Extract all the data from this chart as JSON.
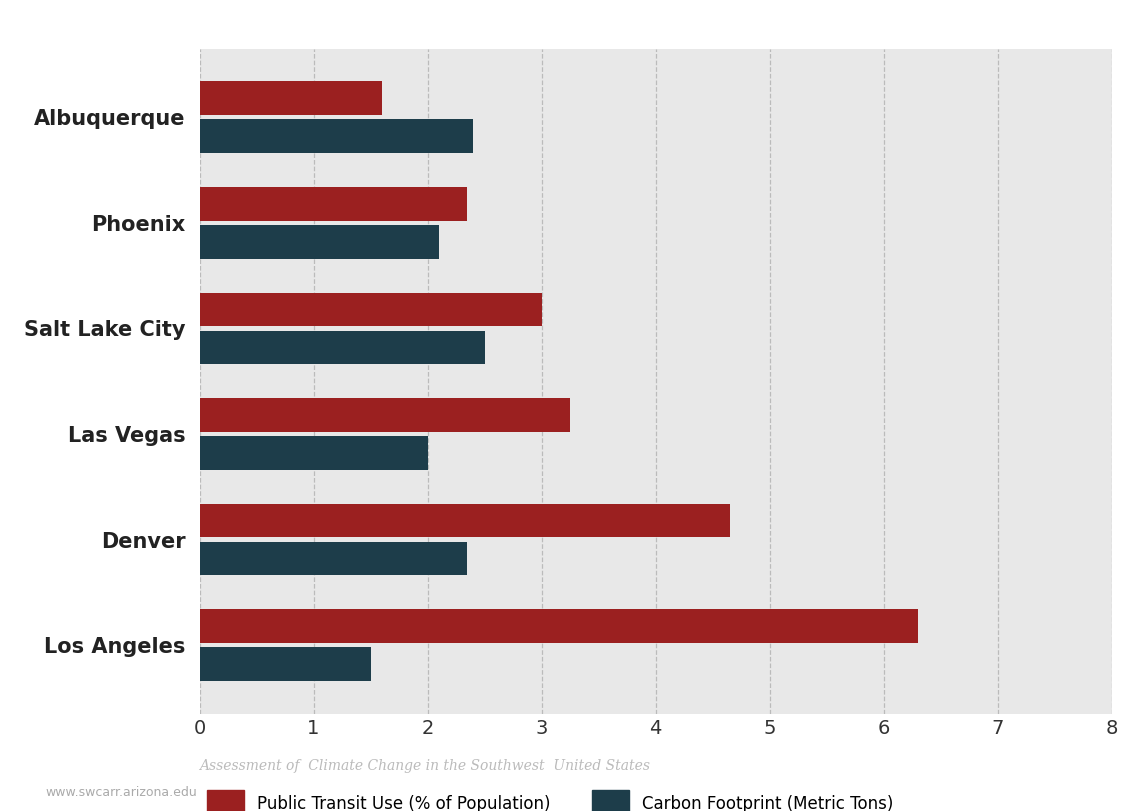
{
  "cities": [
    "Los Angeles",
    "Denver",
    "Las Vegas",
    "Salt Lake City",
    "Phoenix",
    "Albuquerque"
  ],
  "transit_use": [
    6.3,
    4.65,
    3.25,
    3.0,
    2.35,
    1.6
  ],
  "carbon_footprint": [
    1.5,
    2.35,
    2.0,
    2.5,
    2.1,
    2.4
  ],
  "transit_color": "#9b2020",
  "carbon_color": "#1d3d4a",
  "outer_bg_color": "#ffffff",
  "plot_bg_color": "#e8e8e8",
  "left_panel_color": "#ffffff",
  "xlim": [
    0,
    8
  ],
  "xticks": [
    0,
    1,
    2,
    3,
    4,
    5,
    6,
    7,
    8
  ],
  "bar_height": 0.32,
  "bar_gap": 0.04,
  "legend_transit": "Public Transit Use (% of Population)",
  "legend_carbon": "Carbon Footprint (Metric Tons)",
  "footer_main": "Assessment of Climate Change in the Southwest United States",
  "footer_url": "www.swcarr.arizona.edu",
  "grid_color": "#bbbbbb",
  "label_fontsize": 15,
  "tick_fontsize": 14
}
